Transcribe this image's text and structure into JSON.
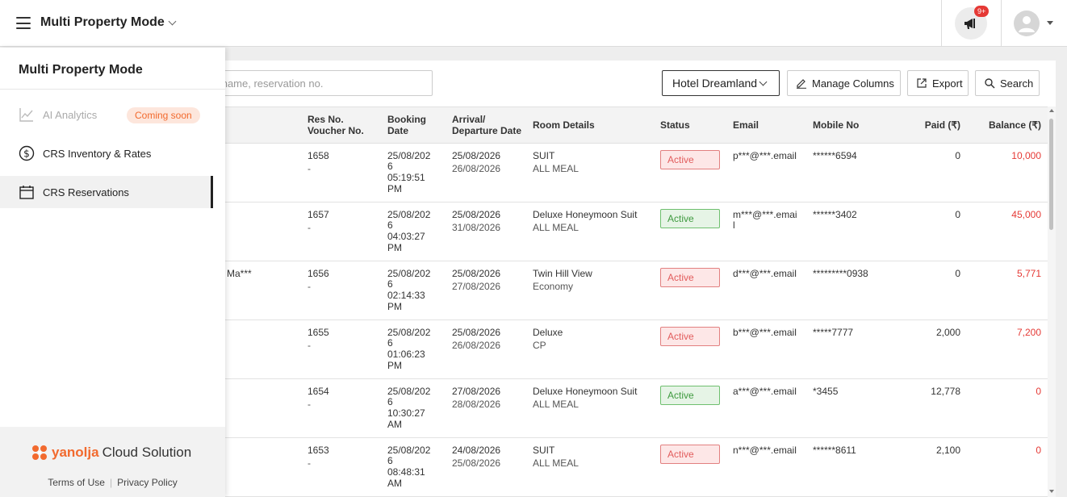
{
  "header": {
    "title": "Multi Property Mode",
    "notification_badge": "9+"
  },
  "toolbar": {
    "search_placeholder": "st name, reservation no.",
    "hotel": "Hotel Dreamland",
    "manage_columns": "Manage Columns",
    "export": "Export",
    "search": "Search"
  },
  "table": {
    "columns": {
      "res_no": "Res No.",
      "voucher_no": "Voucher No.",
      "booking": "Booking",
      "booking2": "Date",
      "arrival": "Arrival/",
      "departure": "Departure Date",
      "room": "Room Details",
      "status": "Status",
      "email": "Email",
      "mobile": "Mobile No",
      "paid": "Paid (₹)",
      "balance": "Balance (₹)"
    },
    "rows": [
      {
        "guest": "",
        "res": "1658",
        "voucher": "-",
        "bdate": "25/08/202",
        "bdate2": "6",
        "btime": "05:19:51",
        "bampm": "PM",
        "arrival": "25/08/2026",
        "departure": "26/08/2026",
        "room": "SUIT",
        "plan": "ALL MEAL",
        "status": "Active",
        "status_color": "red",
        "email": "p***@***.email",
        "email2": "",
        "mobile": "******6594",
        "paid": "0",
        "balance": "10,000"
      },
      {
        "guest": "",
        "res": "1657",
        "voucher": "-",
        "bdate": "25/08/202",
        "bdate2": "6",
        "btime": "04:03:27",
        "bampm": "PM",
        "arrival": "25/08/2026",
        "departure": "31/08/2026",
        "room": "Deluxe Honeymoon Suit",
        "plan": "ALL MEAL",
        "status": "Active",
        "status_color": "green",
        "email": "m***@***.emai",
        "email2": "l",
        "mobile": "******3402",
        "paid": "0",
        "balance": "45,000"
      },
      {
        "guest": "Ma***",
        "res": "1656",
        "voucher": "-",
        "bdate": "25/08/202",
        "bdate2": "6",
        "btime": "02:14:33",
        "bampm": "PM",
        "arrival": "25/08/2026",
        "departure": "27/08/2026",
        "room": "Twin Hill View",
        "plan": "Economy",
        "status": "Active",
        "status_color": "red",
        "email": "d***@***.email",
        "email2": "",
        "mobile": "*********0938",
        "paid": "0",
        "balance": "5,771"
      },
      {
        "guest": "",
        "res": "1655",
        "voucher": "-",
        "bdate": "25/08/202",
        "bdate2": "6",
        "btime": "01:06:23",
        "bampm": "PM",
        "arrival": "25/08/2026",
        "departure": "26/08/2026",
        "room": "Deluxe",
        "plan": "CP",
        "status": "Active",
        "status_color": "red",
        "email": "b***@***.email",
        "email2": "",
        "mobile": "*****7777",
        "paid": "2,000",
        "balance": "7,200"
      },
      {
        "guest": "",
        "res": "1654",
        "voucher": "-",
        "bdate": "25/08/202",
        "bdate2": "6",
        "btime": "10:30:27",
        "bampm": "AM",
        "arrival": "27/08/2026",
        "departure": "28/08/2026",
        "room": "Deluxe Honeymoon Suit",
        "plan": "ALL MEAL",
        "status": "Active",
        "status_color": "green",
        "email": "a***@***.email",
        "email2": "",
        "mobile": "*3455",
        "paid": "12,778",
        "balance": "0"
      },
      {
        "guest": "",
        "res": "1653",
        "voucher": "-",
        "bdate": "25/08/202",
        "bdate2": "6",
        "btime": "08:48:31",
        "bampm": "AM",
        "arrival": "24/08/2026",
        "departure": "25/08/2026",
        "room": "SUIT",
        "plan": "ALL MEAL",
        "status": "Active",
        "status_color": "red",
        "email": "n***@***.email",
        "email2": "",
        "mobile": "******8611",
        "paid": "2,100",
        "balance": "0"
      }
    ]
  },
  "sidebar": {
    "title": "Multi Property Mode",
    "items": [
      {
        "label": "AI Analytics",
        "icon": "chart-line-icon"
      },
      {
        "label": "CRS Inventory & Rates",
        "icon": "dollar-circle-icon"
      },
      {
        "label": "CRS Reservations",
        "icon": "calendar-icon"
      }
    ],
    "coming_soon": "Coming soon",
    "brand_name": "yanolja",
    "brand_suffix": "Cloud Solution",
    "terms": "Terms of Use",
    "privacy": "Privacy Policy"
  }
}
